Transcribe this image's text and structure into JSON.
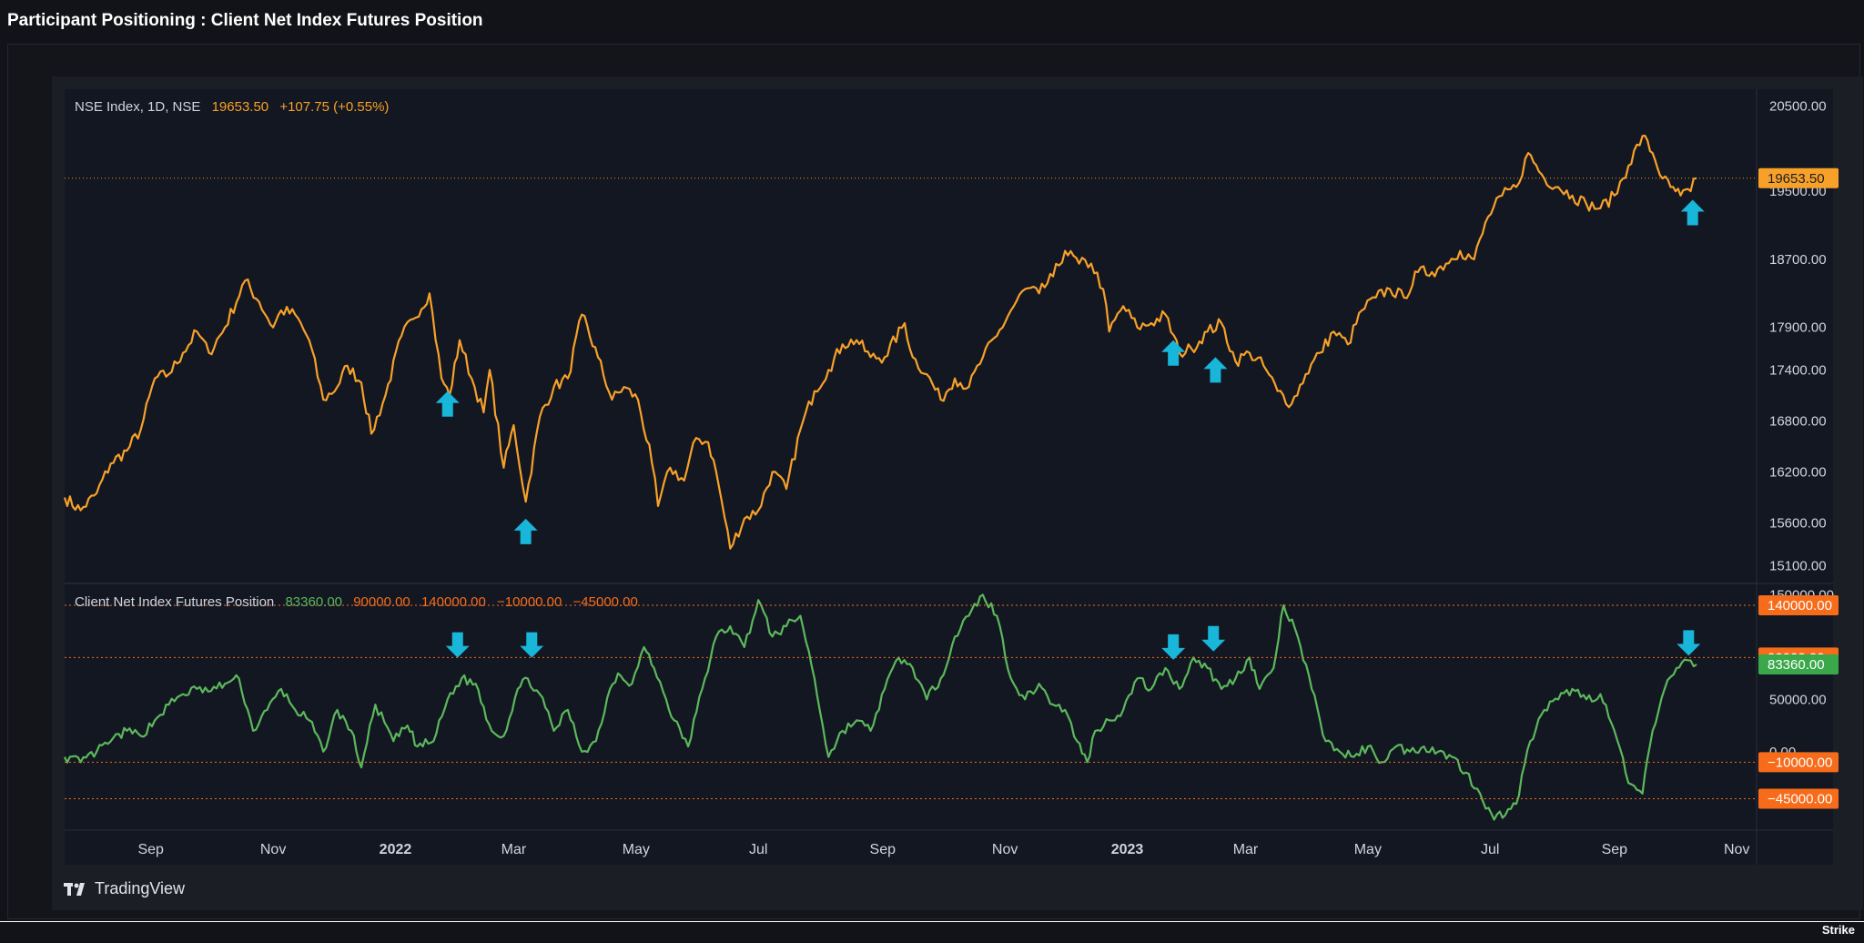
{
  "page_title": "Participant Positioning : Client Net Index Futures Position",
  "watermark": "TradingView",
  "footer_logo": "Strike",
  "colors": {
    "price_line": "#f7a129",
    "position_line": "#5cb85c",
    "arrow": "#18b6d9",
    "dotted_orange": "#f7931a",
    "level_orange": "#f76c1a",
    "position_badge": "#3aa84a",
    "axis_text": "#d1d4dc",
    "pane_bg": "#131722"
  },
  "price_legend": {
    "symbol": "NSE Index, 1D, NSE",
    "last": "19653.50",
    "change": "+107.75 (+0.55%)"
  },
  "position_legend": {
    "name": "Client Net Index Futures Position",
    "value": "83360.00",
    "level1": "90000.00",
    "level2": "140000.00",
    "level3": "−10000.00",
    "level4": "−45000.00"
  },
  "chart_data": [
    {
      "type": "line",
      "title": "NSE Index, 1D, NSE",
      "series": [
        {
          "name": "NSE Index",
          "color": "#f7a129"
        }
      ],
      "anchors": [
        [
          "2021-07-20",
          15900
        ],
        [
          "2021-07-28",
          15750
        ],
        [
          "2021-08-05",
          15950
        ],
        [
          "2021-08-12",
          16300
        ],
        [
          "2021-08-20",
          16450
        ],
        [
          "2021-08-27",
          16700
        ],
        [
          "2021-09-03",
          17300
        ],
        [
          "2021-09-10",
          17350
        ],
        [
          "2021-09-17",
          17600
        ],
        [
          "2021-09-24",
          17850
        ],
        [
          "2021-09-30",
          17600
        ],
        [
          "2021-10-08",
          17900
        ],
        [
          "2021-10-18",
          18450
        ],
        [
          "2021-10-25",
          18200
        ],
        [
          "2021-11-01",
          17900
        ],
        [
          "2021-11-05",
          18100
        ],
        [
          "2021-11-12",
          18050
        ],
        [
          "2021-11-19",
          17750
        ],
        [
          "2021-11-26",
          17050
        ],
        [
          "2021-12-03",
          17200
        ],
        [
          "2021-12-08",
          17450
        ],
        [
          "2021-12-15",
          17250
        ],
        [
          "2021-12-20",
          16650
        ],
        [
          "2021-12-27",
          17100
        ],
        [
          "2022-01-04",
          17800
        ],
        [
          "2022-01-10",
          18000
        ],
        [
          "2022-01-18",
          18300
        ],
        [
          "2022-01-24",
          17300
        ],
        [
          "2022-01-28",
          17100
        ],
        [
          "2022-02-02",
          17750
        ],
        [
          "2022-02-08",
          17300
        ],
        [
          "2022-02-14",
          16900
        ],
        [
          "2022-02-17",
          17400
        ],
        [
          "2022-02-24",
          16250
        ],
        [
          "2022-03-01",
          16750
        ],
        [
          "2022-03-07",
          15850
        ],
        [
          "2022-03-14",
          16850
        ],
        [
          "2022-03-21",
          17200
        ],
        [
          "2022-03-28",
          17300
        ],
        [
          "2022-04-04",
          18050
        ],
        [
          "2022-04-12",
          17550
        ],
        [
          "2022-04-19",
          17050
        ],
        [
          "2022-04-25",
          17200
        ],
        [
          "2022-05-02",
          17050
        ],
        [
          "2022-05-09",
          16300
        ],
        [
          "2022-05-12",
          15800
        ],
        [
          "2022-05-18",
          16250
        ],
        [
          "2022-05-25",
          16100
        ],
        [
          "2022-05-31",
          16600
        ],
        [
          "2022-06-06",
          16550
        ],
        [
          "2022-06-10",
          16200
        ],
        [
          "2022-06-17",
          15300
        ],
        [
          "2022-06-24",
          15650
        ],
        [
          "2022-07-01",
          15750
        ],
        [
          "2022-07-08",
          16200
        ],
        [
          "2022-07-15",
          16000
        ],
        [
          "2022-07-22",
          16700
        ],
        [
          "2022-07-29",
          17150
        ],
        [
          "2022-08-05",
          17400
        ],
        [
          "2022-08-12",
          17700
        ],
        [
          "2022-08-19",
          17750
        ],
        [
          "2022-08-26",
          17550
        ],
        [
          "2022-09-02",
          17550
        ],
        [
          "2022-09-12",
          17950
        ],
        [
          "2022-09-16",
          17550
        ],
        [
          "2022-09-23",
          17350
        ],
        [
          "2022-09-30",
          17050
        ],
        [
          "2022-10-07",
          17300
        ],
        [
          "2022-10-14",
          17200
        ],
        [
          "2022-10-21",
          17550
        ],
        [
          "2022-10-28",
          17800
        ],
        [
          "2022-11-04",
          18100
        ],
        [
          "2022-11-11",
          18350
        ],
        [
          "2022-11-18",
          18300
        ],
        [
          "2022-11-25",
          18500
        ],
        [
          "2022-12-01",
          18800
        ],
        [
          "2022-12-08",
          18650
        ],
        [
          "2022-12-14",
          18650
        ],
        [
          "2022-12-20",
          18350
        ],
        [
          "2022-12-23",
          17850
        ],
        [
          "2022-12-30",
          18150
        ],
        [
          "2023-01-06",
          17900
        ],
        [
          "2023-01-13",
          17950
        ],
        [
          "2023-01-20",
          18050
        ],
        [
          "2023-01-27",
          17600
        ],
        [
          "2023-02-02",
          17650
        ],
        [
          "2023-02-10",
          17850
        ],
        [
          "2023-02-17",
          17950
        ],
        [
          "2023-02-24",
          17500
        ],
        [
          "2023-03-03",
          17600
        ],
        [
          "2023-03-10",
          17450
        ],
        [
          "2023-03-17",
          17150
        ],
        [
          "2023-03-24",
          17000
        ],
        [
          "2023-03-31",
          17350
        ],
        [
          "2023-04-07",
          17600
        ],
        [
          "2023-04-14",
          17850
        ],
        [
          "2023-04-21",
          17700
        ],
        [
          "2023-04-28",
          18100
        ],
        [
          "2023-05-05",
          18250
        ],
        [
          "2023-05-12",
          18350
        ],
        [
          "2023-05-19",
          18250
        ],
        [
          "2023-05-26",
          18550
        ],
        [
          "2023-06-02",
          18550
        ],
        [
          "2023-06-09",
          18650
        ],
        [
          "2023-06-16",
          18800
        ],
        [
          "2023-06-23",
          18700
        ],
        [
          "2023-06-30",
          19200
        ],
        [
          "2023-07-07",
          19450
        ],
        [
          "2023-07-14",
          19550
        ],
        [
          "2023-07-20",
          19950
        ],
        [
          "2023-07-28",
          19650
        ],
        [
          "2023-08-04",
          19550
        ],
        [
          "2023-08-11",
          19450
        ],
        [
          "2023-08-18",
          19350
        ],
        [
          "2023-08-25",
          19300
        ],
        [
          "2023-09-01",
          19450
        ],
        [
          "2023-09-08",
          19800
        ],
        [
          "2023-09-15",
          20150
        ],
        [
          "2023-09-20",
          19950
        ],
        [
          "2023-09-25",
          19650
        ],
        [
          "2023-09-29",
          19550
        ],
        [
          "2023-10-04",
          19450
        ],
        [
          "2023-10-09",
          19500
        ],
        [
          "2023-10-12",
          19653.5
        ]
      ],
      "y_ticks": [
        "20500.00",
        "19500.00",
        "18700.00",
        "17900.00",
        "17400.00",
        "16800.00",
        "16200.00",
        "15600.00",
        "15100.00"
      ],
      "last_price": 19653.5,
      "last_price_label": "19653.50",
      "ylim": [
        14900,
        20700
      ],
      "up_arrows": [
        [
          "2022-01-27",
          17000
        ],
        [
          "2022-03-07",
          15500
        ],
        [
          "2023-01-24",
          17600
        ],
        [
          "2023-02-14",
          17400
        ],
        [
          "2023-10-10",
          19250
        ]
      ]
    },
    {
      "type": "line",
      "title": "Client Net Index Futures Position",
      "series": [
        {
          "name": "Client Net Index Futures Position",
          "color": "#5cb85c"
        }
      ],
      "anchors": [
        [
          "2021-07-20",
          -5000
        ],
        [
          "2021-07-28",
          -10000
        ],
        [
          "2021-08-05",
          0
        ],
        [
          "2021-08-12",
          10000
        ],
        [
          "2021-08-20",
          20000
        ],
        [
          "2021-08-27",
          15000
        ],
        [
          "2021-09-03",
          30000
        ],
        [
          "2021-09-10",
          45000
        ],
        [
          "2021-09-17",
          55000
        ],
        [
          "2021-09-24",
          60000
        ],
        [
          "2021-10-01",
          58000
        ],
        [
          "2021-10-08",
          65000
        ],
        [
          "2021-10-15",
          70000
        ],
        [
          "2021-10-22",
          20000
        ],
        [
          "2021-10-29",
          40000
        ],
        [
          "2021-11-05",
          60000
        ],
        [
          "2021-11-12",
          40000
        ],
        [
          "2021-11-19",
          30000
        ],
        [
          "2021-11-26",
          0
        ],
        [
          "2021-12-03",
          40000
        ],
        [
          "2021-12-10",
          20000
        ],
        [
          "2021-12-15",
          -15000
        ],
        [
          "2021-12-22",
          45000
        ],
        [
          "2021-12-31",
          10000
        ],
        [
          "2022-01-07",
          25000
        ],
        [
          "2022-01-12",
          5000
        ],
        [
          "2022-01-20",
          10000
        ],
        [
          "2022-01-27",
          50000
        ],
        [
          "2022-02-03",
          70000
        ],
        [
          "2022-02-10",
          65000
        ],
        [
          "2022-02-18",
          20000
        ],
        [
          "2022-02-24",
          15000
        ],
        [
          "2022-03-03",
          60000
        ],
        [
          "2022-03-08",
          70000
        ],
        [
          "2022-03-14",
          55000
        ],
        [
          "2022-03-21",
          20000
        ],
        [
          "2022-03-28",
          40000
        ],
        [
          "2022-04-04",
          0
        ],
        [
          "2022-04-11",
          10000
        ],
        [
          "2022-04-18",
          60000
        ],
        [
          "2022-04-22",
          75000
        ],
        [
          "2022-04-29",
          65000
        ],
        [
          "2022-05-05",
          100000
        ],
        [
          "2022-05-10",
          80000
        ],
        [
          "2022-05-16",
          50000
        ],
        [
          "2022-05-20",
          30000
        ],
        [
          "2022-05-27",
          5000
        ],
        [
          "2022-06-03",
          60000
        ],
        [
          "2022-06-10",
          110000
        ],
        [
          "2022-06-17",
          120000
        ],
        [
          "2022-06-24",
          100000
        ],
        [
          "2022-07-01",
          145000
        ],
        [
          "2022-07-08",
          110000
        ],
        [
          "2022-07-15",
          120000
        ],
        [
          "2022-07-22",
          130000
        ],
        [
          "2022-07-29",
          70000
        ],
        [
          "2022-08-05",
          -5000
        ],
        [
          "2022-08-12",
          20000
        ],
        [
          "2022-08-19",
          30000
        ],
        [
          "2022-08-26",
          20000
        ],
        [
          "2022-09-02",
          60000
        ],
        [
          "2022-09-09",
          90000
        ],
        [
          "2022-09-16",
          80000
        ],
        [
          "2022-09-23",
          50000
        ],
        [
          "2022-09-30",
          70000
        ],
        [
          "2022-10-07",
          110000
        ],
        [
          "2022-10-14",
          130000
        ],
        [
          "2022-10-21",
          150000
        ],
        [
          "2022-10-28",
          130000
        ],
        [
          "2022-11-04",
          70000
        ],
        [
          "2022-11-11",
          50000
        ],
        [
          "2022-11-18",
          65000
        ],
        [
          "2022-11-25",
          45000
        ],
        [
          "2022-12-01",
          40000
        ],
        [
          "2022-12-07",
          10000
        ],
        [
          "2022-12-12",
          -10000
        ],
        [
          "2022-12-16",
          20000
        ],
        [
          "2022-12-23",
          30000
        ],
        [
          "2022-12-30",
          40000
        ],
        [
          "2023-01-06",
          70000
        ],
        [
          "2023-01-13",
          60000
        ],
        [
          "2023-01-20",
          80000
        ],
        [
          "2023-01-27",
          60000
        ],
        [
          "2023-02-03",
          90000
        ],
        [
          "2023-02-10",
          80000
        ],
        [
          "2023-02-17",
          60000
        ],
        [
          "2023-02-24",
          70000
        ],
        [
          "2023-03-03",
          90000
        ],
        [
          "2023-03-08",
          60000
        ],
        [
          "2023-03-15",
          80000
        ],
        [
          "2023-03-20",
          140000
        ],
        [
          "2023-03-27",
          110000
        ],
        [
          "2023-04-03",
          60000
        ],
        [
          "2023-04-10",
          10000
        ],
        [
          "2023-04-17",
          0
        ],
        [
          "2023-04-24",
          -5000
        ],
        [
          "2023-05-01",
          5000
        ],
        [
          "2023-05-08",
          -10000
        ],
        [
          "2023-05-15",
          5000
        ],
        [
          "2023-05-22",
          0
        ],
        [
          "2023-05-29",
          5000
        ],
        [
          "2023-06-05",
          0
        ],
        [
          "2023-06-12",
          -5000
        ],
        [
          "2023-06-19",
          -20000
        ],
        [
          "2023-06-26",
          -40000
        ],
        [
          "2023-07-03",
          -65000
        ],
        [
          "2023-07-10",
          -55000
        ],
        [
          "2023-07-14",
          -50000
        ],
        [
          "2023-07-21",
          10000
        ],
        [
          "2023-07-28",
          40000
        ],
        [
          "2023-08-04",
          50000
        ],
        [
          "2023-08-11",
          60000
        ],
        [
          "2023-08-18",
          50000
        ],
        [
          "2023-08-25",
          55000
        ],
        [
          "2023-09-01",
          20000
        ],
        [
          "2023-09-08",
          -30000
        ],
        [
          "2023-09-15",
          -40000
        ],
        [
          "2023-09-20",
          20000
        ],
        [
          "2023-09-26",
          60000
        ],
        [
          "2023-10-02",
          80000
        ],
        [
          "2023-10-06",
          88000
        ],
        [
          "2023-10-12",
          83360
        ]
      ],
      "y_ticks": [
        "150000.00",
        "50000.00",
        "0.00"
      ],
      "levels": [
        140000,
        90000,
        -10000,
        -45000
      ],
      "level_labels": [
        "140000.00",
        "90000.00",
        "−10000.00",
        "−45000.00"
      ],
      "last_value": 83360,
      "last_value_label": "83360.00",
      "ylim": [
        -75000,
        160000
      ],
      "down_arrows": [
        [
          "2022-02-01",
          102000
        ],
        [
          "2022-03-10",
          102000
        ],
        [
          "2023-01-24",
          100000
        ],
        [
          "2023-02-13",
          108000
        ],
        [
          "2023-10-08",
          104000
        ]
      ]
    }
  ],
  "x_axis": {
    "range": [
      "2021-07-20",
      "2023-11-10"
    ],
    "ticks": [
      {
        "date": "2021-09-01",
        "label": "Sep",
        "bold": false
      },
      {
        "date": "2021-11-01",
        "label": "Nov",
        "bold": false
      },
      {
        "date": "2022-01-01",
        "label": "2022",
        "bold": true
      },
      {
        "date": "2022-03-01",
        "label": "Mar",
        "bold": false
      },
      {
        "date": "2022-05-01",
        "label": "May",
        "bold": false
      },
      {
        "date": "2022-07-01",
        "label": "Jul",
        "bold": false
      },
      {
        "date": "2022-09-01",
        "label": "Sep",
        "bold": false
      },
      {
        "date": "2022-11-01",
        "label": "Nov",
        "bold": false
      },
      {
        "date": "2023-01-01",
        "label": "2023",
        "bold": true
      },
      {
        "date": "2023-03-01",
        "label": "Mar",
        "bold": false
      },
      {
        "date": "2023-05-01",
        "label": "May",
        "bold": false
      },
      {
        "date": "2023-07-01",
        "label": "Jul",
        "bold": false
      },
      {
        "date": "2023-09-01",
        "label": "Sep",
        "bold": false
      },
      {
        "date": "2023-11-01",
        "label": "Nov",
        "bold": false
      }
    ]
  }
}
